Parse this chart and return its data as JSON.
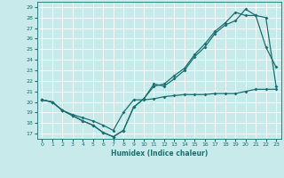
{
  "xlabel": "Humidex (Indice chaleur)",
  "bg_color": "#c8eaea",
  "line_color": "#1a7070",
  "grid_color": "#ffffff",
  "xlim": [
    -0.5,
    23.5
  ],
  "ylim": [
    16.5,
    29.5
  ],
  "xticks": [
    0,
    1,
    2,
    3,
    4,
    5,
    6,
    7,
    8,
    9,
    10,
    11,
    12,
    13,
    14,
    15,
    16,
    17,
    18,
    19,
    20,
    21,
    22,
    23
  ],
  "yticks": [
    17,
    18,
    19,
    20,
    21,
    22,
    23,
    24,
    25,
    26,
    27,
    28,
    29
  ],
  "line1_x": [
    0,
    1,
    2,
    3,
    4,
    5,
    6,
    7,
    8,
    9,
    10,
    11,
    12,
    13,
    14,
    15,
    16,
    17,
    18,
    19,
    20,
    21,
    22,
    23
  ],
  "line1_y": [
    20.2,
    20.0,
    19.2,
    18.7,
    18.2,
    17.8,
    17.1,
    16.7,
    17.3,
    19.5,
    20.3,
    21.7,
    21.5,
    22.2,
    23.0,
    24.3,
    25.2,
    26.5,
    27.3,
    27.7,
    28.8,
    28.2,
    25.2,
    23.3
  ],
  "line2_x": [
    0,
    1,
    2,
    3,
    4,
    5,
    6,
    7,
    8,
    9,
    10,
    11,
    12,
    13,
    14,
    15,
    16,
    17,
    18,
    19,
    20,
    21,
    22,
    23
  ],
  "line2_y": [
    20.2,
    20.0,
    19.2,
    18.7,
    18.2,
    17.8,
    17.1,
    16.7,
    17.3,
    19.5,
    20.3,
    21.5,
    21.7,
    22.5,
    23.2,
    24.5,
    25.5,
    26.7,
    27.5,
    28.5,
    28.2,
    28.2,
    28.0,
    21.5
  ],
  "line3_x": [
    0,
    1,
    2,
    3,
    4,
    5,
    6,
    7,
    8,
    9,
    10,
    11,
    12,
    13,
    14,
    15,
    16,
    17,
    18,
    19,
    20,
    21,
    22,
    23
  ],
  "line3_y": [
    20.2,
    20.0,
    19.2,
    18.8,
    18.5,
    18.2,
    17.8,
    17.3,
    19.0,
    20.2,
    20.2,
    20.3,
    20.5,
    20.6,
    20.7,
    20.7,
    20.7,
    20.8,
    20.8,
    20.8,
    21.0,
    21.2,
    21.2,
    21.2
  ]
}
